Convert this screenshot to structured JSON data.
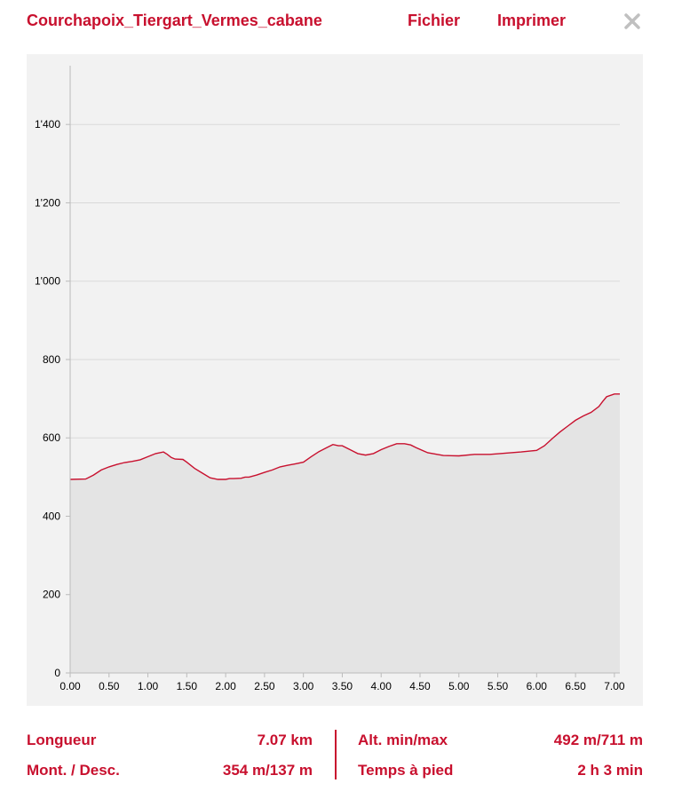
{
  "header": {
    "title": "Courchapoix_Tiergart_Vermes_cabane",
    "menu": [
      "Fichier",
      "Imprimer"
    ],
    "close_icon": "close-icon"
  },
  "colors": {
    "accent": "#c8102e",
    "chart_background": "#f2f2f2",
    "area_fill": "#e4e4e4",
    "gridline": "#d9d9d9",
    "close_icon": "#c0c0c0"
  },
  "chart_data": {
    "type": "area",
    "title": "",
    "xlabel": "",
    "ylabel": "",
    "xlim": [
      0,
      7.07
    ],
    "ylim": [
      0,
      1550
    ],
    "x_ticks": [
      0,
      0.5,
      1,
      1.5,
      2,
      2.5,
      3,
      3.5,
      4,
      4.5,
      5,
      5.5,
      6,
      6.5,
      7
    ],
    "x_tick_labels": [
      "0.00",
      "0.50",
      "1.00",
      "1.50",
      "2.00",
      "2.50",
      "3.00",
      "3.50",
      "4.00",
      "4.50",
      "5.00",
      "5.50",
      "6.00",
      "6.50",
      "7.00"
    ],
    "y_ticks": [
      0,
      200,
      400,
      600,
      800,
      1000,
      1200,
      1400
    ],
    "y_tick_labels": [
      "0",
      "200",
      "400",
      "600",
      "800",
      "1'000",
      "1'200",
      "1'400"
    ],
    "grid": true,
    "legend": "none",
    "series": [
      {
        "x": [
          0,
          0.2,
          0.3,
          0.4,
          0.5,
          0.6,
          0.7,
          0.8,
          0.9,
          1.0,
          1.1,
          1.2,
          1.25,
          1.3,
          1.35,
          1.45,
          1.5,
          1.6,
          1.7,
          1.8,
          1.9,
          2.0,
          2.05,
          2.1,
          2.2,
          2.25,
          2.3,
          2.4,
          2.5,
          2.6,
          2.7,
          2.8,
          2.9,
          3.0,
          3.1,
          3.2,
          3.3,
          3.38,
          3.45,
          3.5,
          3.6,
          3.7,
          3.8,
          3.9,
          4.0,
          4.1,
          4.2,
          4.3,
          4.38,
          4.45,
          4.6,
          4.8,
          5.0,
          5.2,
          5.4,
          5.6,
          5.8,
          6.0,
          6.1,
          6.2,
          6.3,
          6.4,
          6.5,
          6.6,
          6.7,
          6.8,
          6.85,
          6.9,
          7.0,
          7.07
        ],
        "y": [
          494,
          495,
          505,
          518,
          526,
          532,
          537,
          540,
          544,
          552,
          560,
          564,
          558,
          550,
          546,
          545,
          538,
          522,
          510,
          498,
          494,
          494,
          496,
          496,
          497,
          500,
          500,
          505,
          512,
          518,
          526,
          530,
          534,
          538,
          552,
          565,
          575,
          583,
          580,
          580,
          570,
          560,
          556,
          560,
          570,
          578,
          585,
          585,
          582,
          575,
          562,
          555,
          554,
          558,
          558,
          561,
          564,
          568,
          580,
          598,
          615,
          630,
          645,
          656,
          665,
          680,
          693,
          705,
          712,
          712
        ]
      }
    ]
  },
  "stats": {
    "length_label": "Longueur",
    "length_value": "7.07 km",
    "ascent_label": "Mont. / Desc.",
    "ascent_value": "354 m/137 m",
    "altitude_label": "Alt. min/max",
    "altitude_value": "492 m/711 m",
    "time_label": "Temps à pied",
    "time_value": "2 h 3 min"
  }
}
